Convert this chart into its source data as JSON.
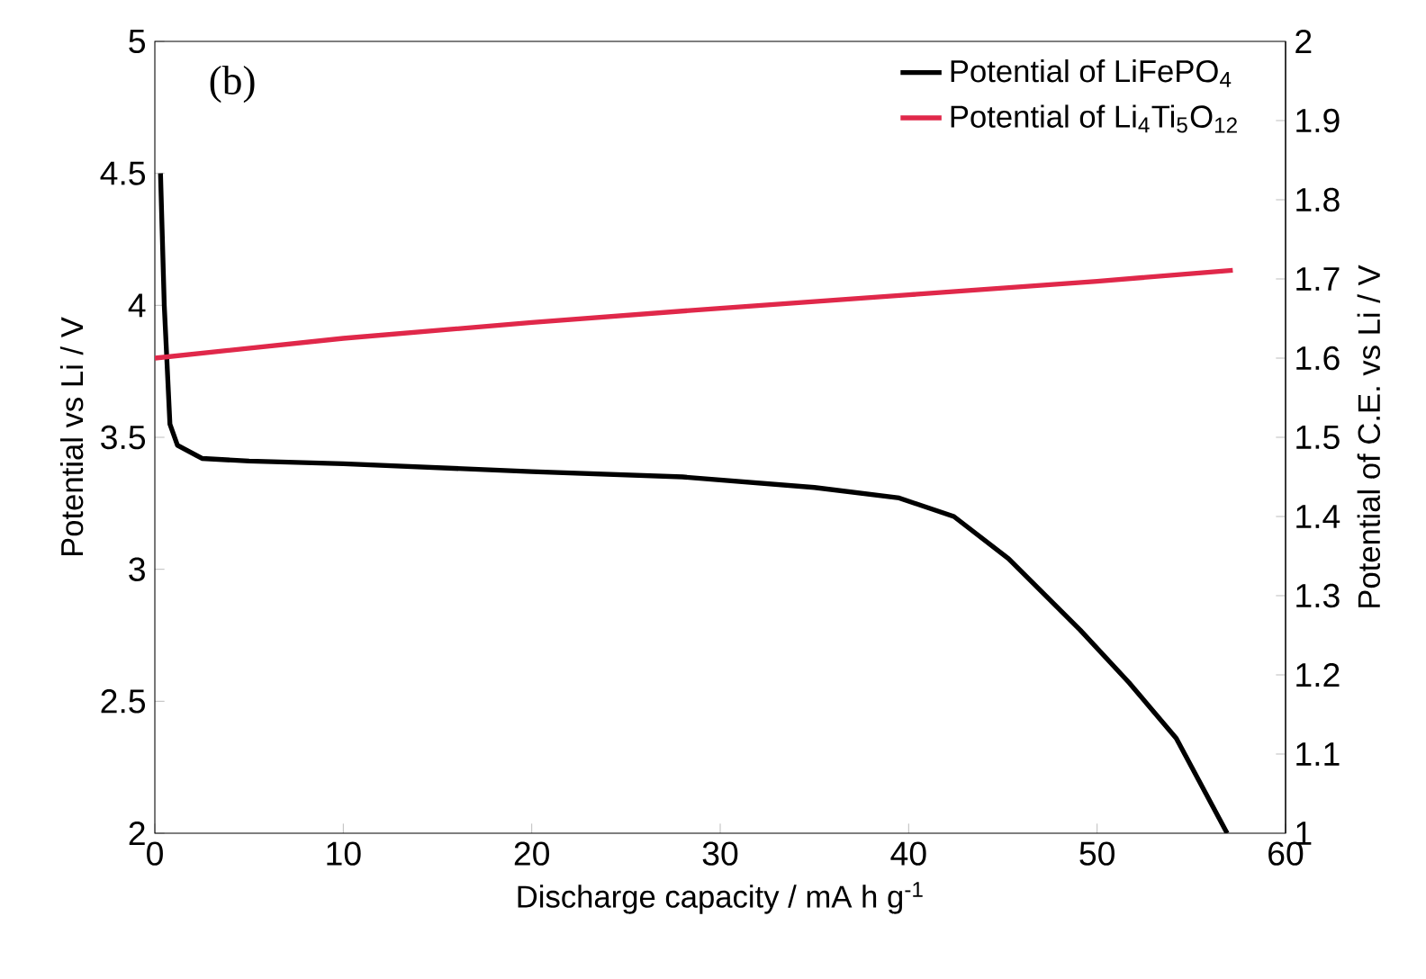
{
  "chart_data": {
    "type": "line",
    "xlabel": "Discharge capacity / mA h g$^{-1}$",
    "ylabel": "Potential vs Li / V",
    "y2label": "Potential of C.E. vs Li / V",
    "annotations": [
      "(b)"
    ],
    "xlim": [
      0,
      60
    ],
    "xticks": [
      0,
      10,
      20,
      30,
      40,
      50,
      60
    ],
    "ylim": [
      2,
      5
    ],
    "yticks": [
      2,
      2.5,
      3,
      3.5,
      4,
      4.5,
      5
    ],
    "y2lim": [
      1,
      2
    ],
    "y2ticks": [
      1,
      1.1,
      1.2,
      1.3,
      1.4,
      1.5,
      1.6,
      1.7,
      1.8,
      1.9,
      2
    ],
    "legend": "top right",
    "grid": false,
    "marker": "none",
    "line_style": "solid",
    "series": [
      {
        "name": "Potential of LiFePO$_{4}$",
        "color": "#000000",
        "x": [
          0.3,
          0.5,
          0.8,
          1.2,
          2.5,
          5,
          10,
          20,
          28,
          35,
          39.5,
          42.4,
          45.3,
          49.1,
          51.7,
          54.2,
          56.9
        ],
        "values": [
          4.5,
          4.0,
          3.55,
          3.47,
          3.42,
          3.41,
          3.4,
          3.37,
          3.35,
          3.31,
          3.27,
          3.2,
          3.04,
          2.77,
          2.57,
          2.36,
          2.0
        ]
      },
      {
        "name": "Potential of Li$_{4}$Ti$_{5}$O$_{12}$",
        "color": "#e0284a",
        "axis": "y2",
        "x": [
          0,
          10,
          20,
          30,
          40,
          50,
          57.2
        ],
        "values": [
          1.6,
          1.625,
          1.645,
          1.663,
          1.68,
          1.697,
          1.711
        ]
      }
    ]
  }
}
